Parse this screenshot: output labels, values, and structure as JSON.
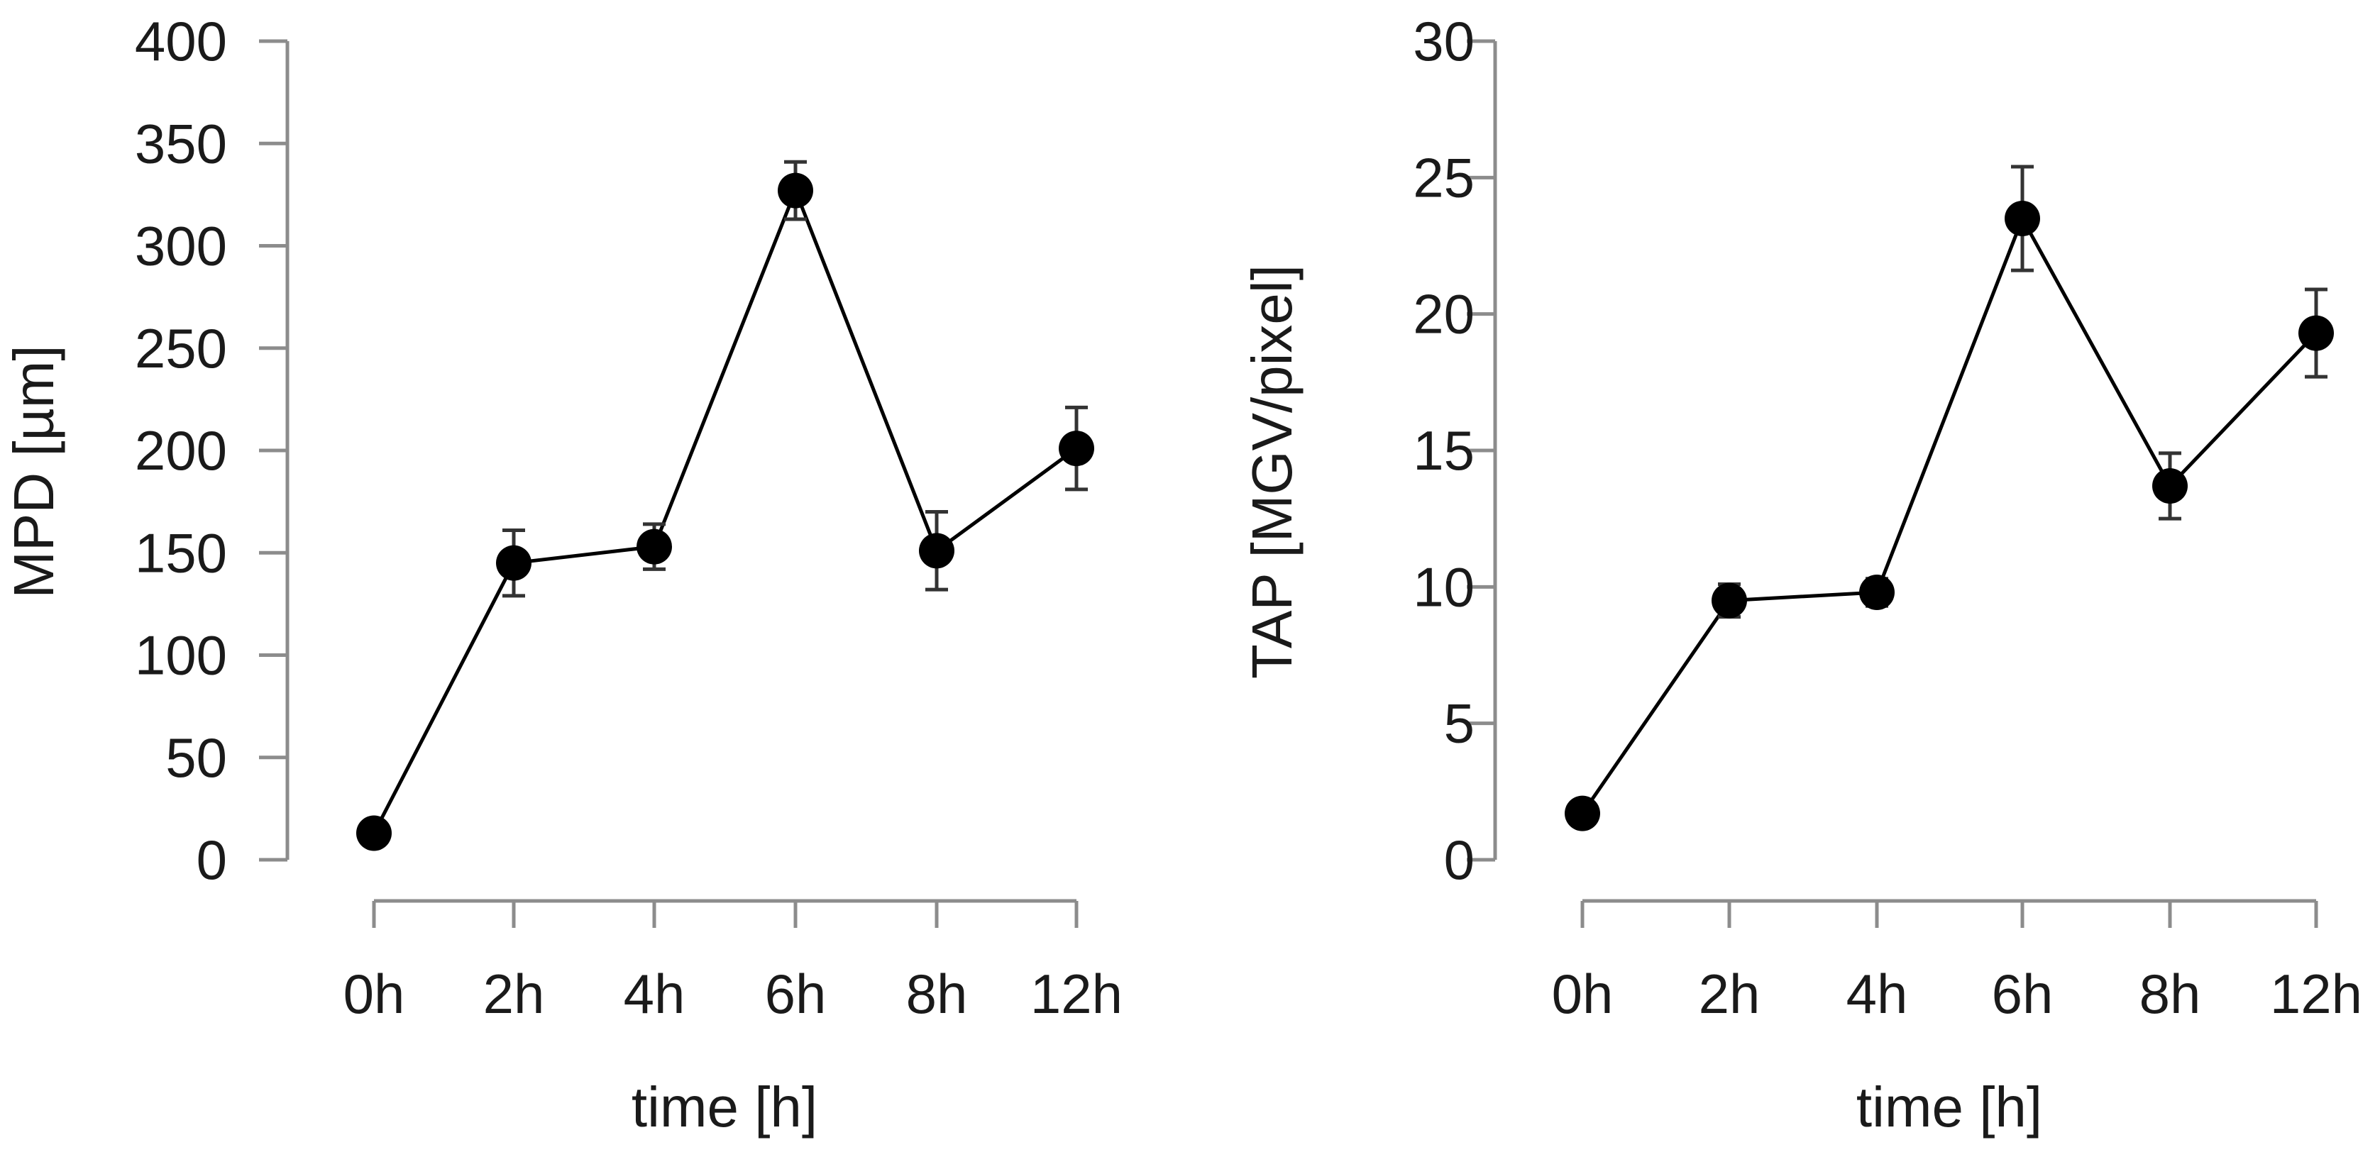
{
  "chart_data": [
    {
      "id": "left",
      "type": "line",
      "title": "",
      "xlabel": "time [h]",
      "ylabel": "MPD [µm]",
      "categories": [
        "0h",
        "2h",
        "4h",
        "6h",
        "8h",
        "12h"
      ],
      "ylim": [
        0,
        400
      ],
      "yticks": [
        0,
        50,
        100,
        150,
        200,
        250,
        300,
        350,
        400
      ],
      "grid": false,
      "series": [
        {
          "name": "MPD",
          "values": [
            13,
            145,
            153,
            327,
            151,
            201
          ],
          "errors": [
            3,
            16,
            11,
            14,
            19,
            20
          ]
        }
      ]
    },
    {
      "id": "right",
      "type": "line",
      "title": "",
      "xlabel": "time [h]",
      "ylabel": "TAP [MGV/pixel]",
      "categories": [
        "0h",
        "2h",
        "4h",
        "6h",
        "8h",
        "12h"
      ],
      "ylim": [
        0,
        30
      ],
      "yticks": [
        0,
        5,
        10,
        15,
        20,
        25,
        30
      ],
      "grid": false,
      "series": [
        {
          "name": "TAP",
          "values": [
            1.7,
            9.5,
            9.8,
            23.5,
            13.7,
            19.3
          ],
          "errors": [
            0.2,
            0.6,
            0.5,
            1.9,
            1.2,
            1.6
          ]
        }
      ]
    }
  ],
  "colors": {
    "line": "#000000",
    "axis": "#8c8c8c",
    "text": "#1a1a1a"
  }
}
